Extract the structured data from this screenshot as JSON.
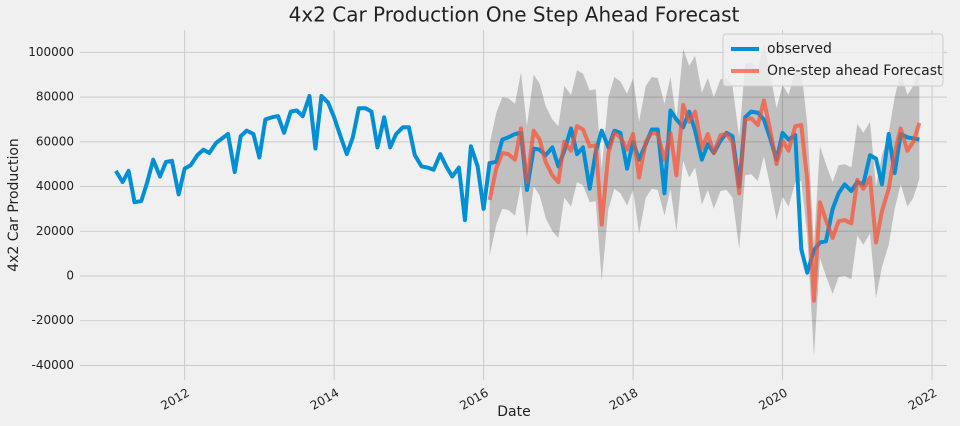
{
  "chart_data": {
    "type": "line",
    "title": "4x2 Car Production One Step Ahead Forecast",
    "x_label": "Date",
    "y_label": "4x2 Car Production",
    "xlim": [
      2010.6,
      2022.2
    ],
    "xticks": [
      2012,
      2014,
      2016,
      2018,
      2020,
      2022
    ],
    "ylim": [
      -46500,
      110000
    ],
    "yticks": [
      -40000,
      -20000,
      0,
      20000,
      40000,
      60000,
      80000,
      100000
    ],
    "grid": true,
    "legend": "upper right",
    "x": [
      2011.08,
      2011.17,
      2011.25,
      2011.33,
      2011.42,
      2011.5,
      2011.58,
      2011.67,
      2011.75,
      2011.83,
      2011.92,
      2012,
      2012.08,
      2012.17,
      2012.25,
      2012.33,
      2012.42,
      2012.5,
      2012.58,
      2012.67,
      2012.75,
      2012.83,
      2012.92,
      2013,
      2013.08,
      2013.17,
      2013.25,
      2013.33,
      2013.42,
      2013.5,
      2013.58,
      2013.67,
      2013.75,
      2013.83,
      2013.92,
      2014,
      2014.08,
      2014.17,
      2014.25,
      2014.33,
      2014.42,
      2014.5,
      2014.58,
      2014.67,
      2014.75,
      2014.83,
      2014.92,
      2015,
      2015.08,
      2015.17,
      2015.25,
      2015.33,
      2015.42,
      2015.5,
      2015.58,
      2015.67,
      2015.75,
      2015.83,
      2015.92,
      2016,
      2016.08,
      2016.17,
      2016.25,
      2016.33,
      2016.42,
      2016.5,
      2016.58,
      2016.67,
      2016.75,
      2016.83,
      2016.92,
      2017,
      2017.08,
      2017.17,
      2017.25,
      2017.33,
      2017.42,
      2017.5,
      2017.58,
      2017.67,
      2017.75,
      2017.83,
      2017.92,
      2018,
      2018.08,
      2018.17,
      2018.25,
      2018.33,
      2018.42,
      2018.5,
      2018.58,
      2018.67,
      2018.75,
      2018.83,
      2018.92,
      2019,
      2019.08,
      2019.17,
      2019.25,
      2019.33,
      2019.42,
      2019.5,
      2019.58,
      2019.67,
      2019.75,
      2019.83,
      2019.92,
      2020,
      2020.08,
      2020.17,
      2020.25,
      2020.33,
      2020.42,
      2020.5,
      2020.58,
      2020.67,
      2020.75,
      2020.83,
      2020.92,
      2021,
      2021.08,
      2021.17,
      2021.25,
      2021.33,
      2021.42,
      2021.5,
      2021.58,
      2021.67,
      2021.75,
      2021.83
    ],
    "band": {
      "color": "#000000",
      "opacity": 0.2,
      "lower": [
        null,
        null,
        null,
        null,
        null,
        null,
        null,
        null,
        null,
        null,
        null,
        null,
        null,
        null,
        null,
        null,
        null,
        null,
        null,
        null,
        null,
        null,
        null,
        null,
        null,
        null,
        null,
        null,
        null,
        null,
        null,
        null,
        null,
        null,
        null,
        null,
        null,
        null,
        null,
        null,
        null,
        null,
        null,
        null,
        null,
        null,
        null,
        null,
        null,
        null,
        null,
        null,
        null,
        null,
        null,
        null,
        null,
        null,
        null,
        null,
        9000,
        23000,
        30000,
        29500,
        27000,
        41000,
        17000,
        40000,
        36000,
        26000,
        20000,
        17000,
        35000,
        31000,
        42000,
        40500,
        33000,
        33500,
        -2000,
        30000,
        39000,
        37000,
        31500,
        38500,
        19000,
        35000,
        39000,
        38500,
        27000,
        39000,
        20000,
        51500,
        44000,
        48500,
        32000,
        38500,
        30000,
        38000,
        38500,
        35000,
        12000,
        45000,
        45500,
        42500,
        53500,
        41000,
        25000,
        35500,
        31000,
        42000,
        42500,
        18000,
        -36000,
        8000,
        0,
        -8000,
        -500,
        0,
        -1500,
        18000,
        14000,
        19000,
        -10000,
        4000,
        14000,
        30000,
        41000,
        31000,
        35000,
        43500
      ],
      "upper": [
        null,
        null,
        null,
        null,
        null,
        null,
        null,
        null,
        null,
        null,
        null,
        null,
        null,
        null,
        null,
        null,
        null,
        null,
        null,
        null,
        null,
        null,
        null,
        null,
        null,
        null,
        null,
        null,
        null,
        null,
        null,
        null,
        null,
        null,
        null,
        null,
        null,
        null,
        null,
        null,
        null,
        null,
        null,
        null,
        null,
        null,
        null,
        null,
        null,
        null,
        null,
        null,
        null,
        null,
        null,
        null,
        null,
        null,
        null,
        null,
        59000,
        73000,
        80000,
        79500,
        77000,
        91000,
        67000,
        90000,
        86000,
        76000,
        70000,
        67000,
        85000,
        81000,
        92000,
        90500,
        83000,
        83500,
        48000,
        80000,
        89000,
        87000,
        81500,
        88500,
        69000,
        85000,
        89000,
        88500,
        77000,
        89000,
        70000,
        101500,
        94000,
        98500,
        82000,
        88500,
        80000,
        88000,
        88500,
        85000,
        62000,
        95000,
        95500,
        92500,
        103500,
        91000,
        75000,
        85500,
        81000,
        92000,
        92500,
        68000,
        14000,
        58000,
        50000,
        42000,
        49500,
        50000,
        48500,
        68000,
        64000,
        69000,
        40000,
        54000,
        64000,
        80000,
        91000,
        81000,
        85000,
        93500
      ]
    },
    "series": [
      {
        "name": "observed",
        "color": "#008fd5",
        "opacity": 1,
        "values": [
          47000,
          42000,
          47000,
          33000,
          33500,
          42000,
          52000,
          44500,
          51000,
          51500,
          36500,
          48000,
          49500,
          54000,
          56500,
          55000,
          59500,
          61500,
          63500,
          46500,
          62500,
          65000,
          63500,
          53000,
          70000,
          71000,
          71500,
          64000,
          73500,
          74000,
          71500,
          80500,
          57000,
          80500,
          77500,
          71000,
          63000,
          54500,
          62000,
          75000,
          75000,
          73500,
          57500,
          71000,
          57500,
          63500,
          66500,
          66500,
          54000,
          49000,
          48500,
          47500,
          54500,
          49000,
          44500,
          48500,
          25000,
          58000,
          49000,
          30000,
          50500,
          51000,
          61000,
          62000,
          63500,
          64000,
          38500,
          57000,
          56500,
          54000,
          57500,
          49000,
          56000,
          66000,
          54500,
          57500,
          39000,
          55500,
          65000,
          57500,
          65000,
          64000,
          48000,
          60000,
          52000,
          59000,
          65500,
          65500,
          37000,
          74000,
          70000,
          66500,
          73500,
          65000,
          52000,
          59000,
          55000,
          60500,
          64000,
          62500,
          40000,
          71000,
          73500,
          73000,
          70000,
          62000,
          52000,
          64000,
          61000,
          63000,
          12000,
          1500,
          11500,
          15000,
          15500,
          30000,
          37000,
          41000,
          38000,
          42000,
          41000,
          54000,
          52500,
          41000,
          63500,
          46000,
          63500,
          62000,
          61500,
          61000
        ]
      },
      {
        "name": "One-step ahead Forecast",
        "color": "#fc4f30",
        "opacity": 0.7,
        "values": [
          null,
          null,
          null,
          null,
          null,
          null,
          null,
          null,
          null,
          null,
          null,
          null,
          null,
          null,
          null,
          null,
          null,
          null,
          null,
          null,
          null,
          null,
          null,
          null,
          null,
          null,
          null,
          null,
          null,
          null,
          null,
          null,
          null,
          null,
          null,
          null,
          null,
          null,
          null,
          null,
          null,
          null,
          null,
          null,
          null,
          null,
          null,
          null,
          null,
          null,
          null,
          null,
          null,
          null,
          null,
          null,
          null,
          null,
          null,
          null,
          34000,
          48000,
          55000,
          54500,
          52000,
          66000,
          42000,
          65000,
          61000,
          51000,
          45000,
          42000,
          60000,
          56000,
          67000,
          65500,
          58000,
          58500,
          23000,
          55000,
          64000,
          62000,
          56500,
          63500,
          44000,
          60000,
          64000,
          63500,
          52000,
          64000,
          45000,
          76500,
          69000,
          73500,
          57000,
          63500,
          55000,
          63000,
          63500,
          60000,
          37000,
          70000,
          70500,
          67500,
          78500,
          66000,
          50000,
          60500,
          56000,
          67000,
          67500,
          43000,
          -11000,
          33000,
          25000,
          17000,
          24500,
          25000,
          23500,
          43000,
          39000,
          44000,
          15000,
          29000,
          39000,
          55000,
          66000,
          56000,
          60000,
          68500
        ]
      }
    ]
  }
}
